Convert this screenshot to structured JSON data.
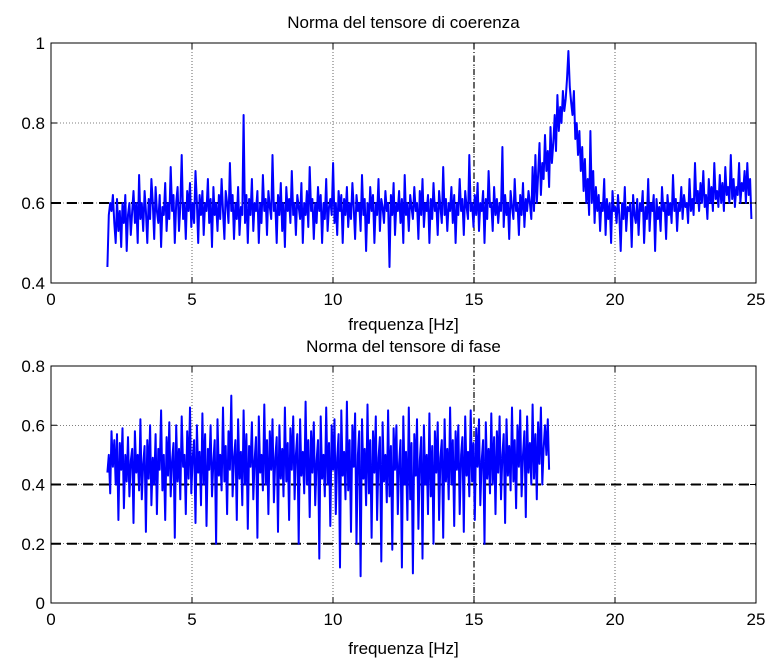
{
  "colors": {
    "line": "#0000ff",
    "grid": "#000000",
    "ref": "#000000"
  },
  "chart_data": [
    {
      "type": "line",
      "title": "Norma del tensore di coerenza",
      "xlabel": "frequenza [Hz]",
      "ylabel": "",
      "xlim": [
        0,
        25
      ],
      "ylim": [
        0.4,
        1
      ],
      "xticks": [
        0,
        5,
        10,
        15,
        20,
        25
      ],
      "yticks": [
        0.4,
        0.6,
        0.8,
        1
      ],
      "xtick_labels": [
        "0",
        "5",
        "10",
        "15",
        "20",
        "25"
      ],
      "ytick_labels": [
        "0.4",
        "0.6",
        "0.8",
        "1"
      ],
      "grid": true,
      "reference_lines": [
        0.6
      ],
      "x_start": 2,
      "x_step": 0.0488,
      "series": [
        {
          "values": [
            0.44,
            0.57,
            0.6,
            0.58,
            0.62,
            0.55,
            0.5,
            0.61,
            0.53,
            0.58,
            0.49,
            0.6,
            0.55,
            0.62,
            0.48,
            0.57,
            0.6,
            0.52,
            0.58,
            0.63,
            0.55,
            0.6,
            0.5,
            0.67,
            0.56,
            0.6,
            0.53,
            0.63,
            0.58,
            0.5,
            0.61,
            0.56,
            0.66,
            0.6,
            0.51,
            0.64,
            0.58,
            0.55,
            0.62,
            0.49,
            0.59,
            0.57,
            0.65,
            0.53,
            0.6,
            0.56,
            0.69,
            0.58,
            0.62,
            0.5,
            0.6,
            0.64,
            0.53,
            0.59,
            0.72,
            0.56,
            0.6,
            0.51,
            0.63,
            0.58,
            0.65,
            0.54,
            0.6,
            0.55,
            0.68,
            0.6,
            0.5,
            0.62,
            0.57,
            0.63,
            0.52,
            0.6,
            0.58,
            0.66,
            0.55,
            0.61,
            0.49,
            0.64,
            0.57,
            0.6,
            0.53,
            0.62,
            0.56,
            0.66,
            0.58,
            0.51,
            0.63,
            0.6,
            0.55,
            0.7,
            0.58,
            0.62,
            0.51,
            0.6,
            0.56,
            0.64,
            0.52,
            0.59,
            0.57,
            0.82,
            0.55,
            0.62,
            0.5,
            0.61,
            0.57,
            0.66,
            0.53,
            0.6,
            0.58,
            0.63,
            0.5,
            0.6,
            0.55,
            0.67,
            0.58,
            0.61,
            0.52,
            0.63,
            0.59,
            0.56,
            0.72,
            0.58,
            0.6,
            0.5,
            0.62,
            0.57,
            0.65,
            0.53,
            0.6,
            0.49,
            0.64,
            0.58,
            0.61,
            0.55,
            0.68,
            0.57,
            0.6,
            0.52,
            0.62,
            0.59,
            0.56,
            0.65,
            0.5,
            0.6,
            0.57,
            0.63,
            0.54,
            0.69,
            0.58,
            0.61,
            0.51,
            0.6,
            0.55,
            0.64,
            0.58,
            0.62,
            0.5,
            0.6,
            0.56,
            0.66,
            0.53,
            0.59,
            0.61,
            0.57,
            0.7,
            0.55,
            0.6,
            0.52,
            0.63,
            0.58,
            0.62,
            0.5,
            0.61,
            0.57,
            0.64,
            0.54,
            0.6,
            0.56,
            0.65,
            0.59,
            0.51,
            0.62,
            0.58,
            0.6,
            0.53,
            0.67,
            0.57,
            0.61,
            0.48,
            0.6,
            0.55,
            0.64,
            0.58,
            0.62,
            0.5,
            0.6,
            0.57,
            0.66,
            0.53,
            0.61,
            0.59,
            0.55,
            0.63,
            0.58,
            0.6,
            0.44,
            0.62,
            0.57,
            0.65,
            0.52,
            0.6,
            0.58,
            0.63,
            0.55,
            0.61,
            0.5,
            0.67,
            0.57,
            0.6,
            0.53,
            0.62,
            0.59,
            0.56,
            0.64,
            0.58,
            0.6,
            0.51,
            0.63,
            0.57,
            0.66,
            0.54,
            0.6,
            0.58,
            0.62,
            0.5,
            0.61,
            0.56,
            0.65,
            0.58,
            0.6,
            0.52,
            0.63,
            0.59,
            0.55,
            0.69,
            0.57,
            0.61,
            0.53,
            0.6,
            0.58,
            0.64,
            0.55,
            0.62,
            0.5,
            0.6,
            0.57,
            0.66,
            0.58,
            0.61,
            0.52,
            0.63,
            0.59,
            0.56,
            0.72,
            0.58,
            0.6,
            0.54,
            0.62,
            0.57,
            0.65,
            0.53,
            0.6,
            0.58,
            0.63,
            0.5,
            0.61,
            0.56,
            0.68,
            0.59,
            0.6,
            0.53,
            0.64,
            0.57,
            0.61,
            0.55,
            0.6,
            0.58,
            0.74,
            0.54,
            0.62,
            0.57,
            0.6,
            0.51,
            0.63,
            0.59,
            0.56,
            0.66,
            0.58,
            0.6,
            0.52,
            0.62,
            0.57,
            0.65,
            0.54,
            0.61,
            0.58,
            0.63,
            0.6,
            0.56,
            0.69,
            0.58,
            0.72,
            0.6,
            0.67,
            0.75,
            0.62,
            0.7,
            0.66,
            0.77,
            0.68,
            0.73,
            0.64,
            0.79,
            0.7,
            0.75,
            0.82,
            0.73,
            0.87,
            0.78,
            0.84,
            0.8,
            0.88,
            0.83,
            0.86,
            0.91,
            0.98,
            0.89,
            0.85,
            0.82,
            0.88,
            0.76,
            0.8,
            0.72,
            0.78,
            0.68,
            0.74,
            0.63,
            0.71,
            0.6,
            0.66,
            0.57,
            0.78,
            0.6,
            0.68,
            0.55,
            0.64,
            0.58,
            0.62,
            0.53,
            0.6,
            0.58,
            0.66,
            0.52,
            0.61,
            0.56,
            0.6,
            0.5,
            0.63,
            0.58,
            0.59,
            0.55,
            0.62,
            0.57,
            0.48,
            0.6,
            0.56,
            0.64,
            0.53,
            0.59,
            0.58,
            0.6,
            0.49,
            0.62,
            0.57,
            0.55,
            0.61,
            0.52,
            0.6,
            0.58,
            0.63,
            0.5,
            0.59,
            0.56,
            0.66,
            0.53,
            0.6,
            0.58,
            0.62,
            0.48,
            0.61,
            0.56,
            0.59,
            0.53,
            0.64,
            0.58,
            0.6,
            0.51,
            0.62,
            0.57,
            0.6,
            0.55,
            0.67,
            0.58,
            0.61,
            0.53,
            0.6,
            0.58,
            0.64,
            0.56,
            0.62,
            0.59,
            0.6,
            0.55,
            0.66,
            0.58,
            0.61,
            0.57,
            0.7,
            0.6,
            0.63,
            0.58,
            0.65,
            0.6,
            0.68,
            0.59,
            0.62,
            0.56,
            0.66,
            0.6,
            0.64,
            0.58,
            0.7,
            0.61,
            0.63,
            0.59,
            0.67,
            0.6,
            0.65,
            0.58,
            0.69,
            0.62,
            0.64,
            0.6,
            0.72,
            0.61,
            0.66,
            0.59,
            0.64,
            0.62,
            0.7,
            0.6,
            0.65,
            0.63,
            0.68,
            0.6,
            0.7,
            0.62,
            0.66,
            0.56
          ]
        }
      ]
    },
    {
      "type": "line",
      "title": "Norma del tensore di fase",
      "xlabel": "frequenza [Hz]",
      "ylabel": "",
      "xlim": [
        0,
        25
      ],
      "ylim": [
        0,
        0.8
      ],
      "xticks": [
        0,
        5,
        10,
        15,
        20,
        25
      ],
      "yticks": [
        0,
        0.2,
        0.4,
        0.6,
        0.8
      ],
      "xtick_labels": [
        "0",
        "5",
        "10",
        "15",
        "20",
        "25"
      ],
      "ytick_labels": [
        "0",
        "0.2",
        "0.4",
        "0.6",
        "0.8"
      ],
      "grid": true,
      "reference_lines": [
        0.2,
        0.4
      ],
      "x_start": 2,
      "x_step": 0.0488,
      "series": [
        {
          "values": [
            0.44,
            0.5,
            0.37,
            0.58,
            0.46,
            0.55,
            0.4,
            0.57,
            0.28,
            0.54,
            0.45,
            0.59,
            0.32,
            0.5,
            0.41,
            0.56,
            0.36,
            0.48,
            0.52,
            0.27,
            0.58,
            0.44,
            0.5,
            0.38,
            0.62,
            0.35,
            0.47,
            0.53,
            0.24,
            0.55,
            0.42,
            0.6,
            0.33,
            0.49,
            0.4,
            0.57,
            0.3,
            0.52,
            0.45,
            0.65,
            0.38,
            0.5,
            0.28,
            0.56,
            0.43,
            0.61,
            0.36,
            0.48,
            0.54,
            0.22,
            0.6,
            0.41,
            0.52,
            0.35,
            0.63,
            0.46,
            0.5,
            0.3,
            0.58,
            0.42,
            0.66,
            0.37,
            0.49,
            0.55,
            0.27,
            0.6,
            0.44,
            0.51,
            0.33,
            0.64,
            0.4,
            0.57,
            0.26,
            0.52,
            0.45,
            0.6,
            0.36,
            0.48,
            0.55,
            0.2,
            0.62,
            0.43,
            0.5,
            0.38,
            0.66,
            0.41,
            0.53,
            0.3,
            0.58,
            0.45,
            0.7,
            0.36,
            0.49,
            0.55,
            0.28,
            0.62,
            0.42,
            0.51,
            0.33,
            0.65,
            0.4,
            0.57,
            0.25,
            0.53,
            0.46,
            0.61,
            0.35,
            0.48,
            0.56,
            0.22,
            0.63,
            0.44,
            0.5,
            0.38,
            0.67,
            0.4,
            0.55,
            0.3,
            0.58,
            0.45,
            0.62,
            0.34,
            0.49,
            0.56,
            0.24,
            0.6,
            0.42,
            0.52,
            0.36,
            0.66,
            0.41,
            0.54,
            0.28,
            0.59,
            0.45,
            0.63,
            0.35,
            0.5,
            0.57,
            0.2,
            0.62,
            0.43,
            0.51,
            0.37,
            0.68,
            0.4,
            0.55,
            0.29,
            0.58,
            0.44,
            0.61,
            0.33,
            0.48,
            0.55,
            0.15,
            0.63,
            0.42,
            0.5,
            0.36,
            0.66,
            0.4,
            0.54,
            0.26,
            0.6,
            0.45,
            0.62,
            0.3,
            0.49,
            0.57,
            0.12,
            0.65,
            0.43,
            0.51,
            0.35,
            0.68,
            0.38,
            0.55,
            0.24,
            0.6,
            0.46,
            0.64,
            0.2,
            0.5,
            0.58,
            0.09,
            0.62,
            0.42,
            0.52,
            0.33,
            0.67,
            0.37,
            0.55,
            0.22,
            0.58,
            0.44,
            0.63,
            0.28,
            0.49,
            0.56,
            0.14,
            0.61,
            0.41,
            0.5,
            0.34,
            0.65,
            0.36,
            0.53,
            0.18,
            0.59,
            0.45,
            0.6,
            0.3,
            0.47,
            0.55,
            0.12,
            0.63,
            0.4,
            0.51,
            0.28,
            0.66,
            0.35,
            0.54,
            0.1,
            0.57,
            0.43,
            0.62,
            0.25,
            0.48,
            0.56,
            0.15,
            0.6,
            0.4,
            0.5,
            0.3,
            0.64,
            0.36,
            0.53,
            0.2,
            0.58,
            0.44,
            0.61,
            0.28,
            0.49,
            0.55,
            0.22,
            0.62,
            0.41,
            0.52,
            0.35,
            0.66,
            0.4,
            0.55,
            0.26,
            0.58,
            0.45,
            0.6,
            0.3,
            0.5,
            0.56,
            0.24,
            0.63,
            0.43,
            0.51,
            0.36,
            0.65,
            0.41,
            0.54,
            0.28,
            0.59,
            0.46,
            0.62,
            0.33,
            0.48,
            0.55,
            0.2,
            0.61,
            0.42,
            0.52,
            0.37,
            0.64,
            0.4,
            0.56,
            0.3,
            0.58,
            0.44,
            0.63,
            0.35,
            0.5,
            0.57,
            0.27,
            0.62,
            0.43,
            0.53,
            0.38,
            0.66,
            0.41,
            0.55,
            0.32,
            0.6,
            0.46,
            0.65,
            0.36,
            0.5,
            0.58,
            0.29,
            0.63,
            0.44,
            0.54,
            0.4,
            0.67,
            0.42,
            0.57,
            0.35,
            0.61,
            0.47,
            0.66,
            0.4,
            0.52,
            0.6,
            0.5,
            0.62,
            0.45
          ]
        }
      ]
    }
  ]
}
